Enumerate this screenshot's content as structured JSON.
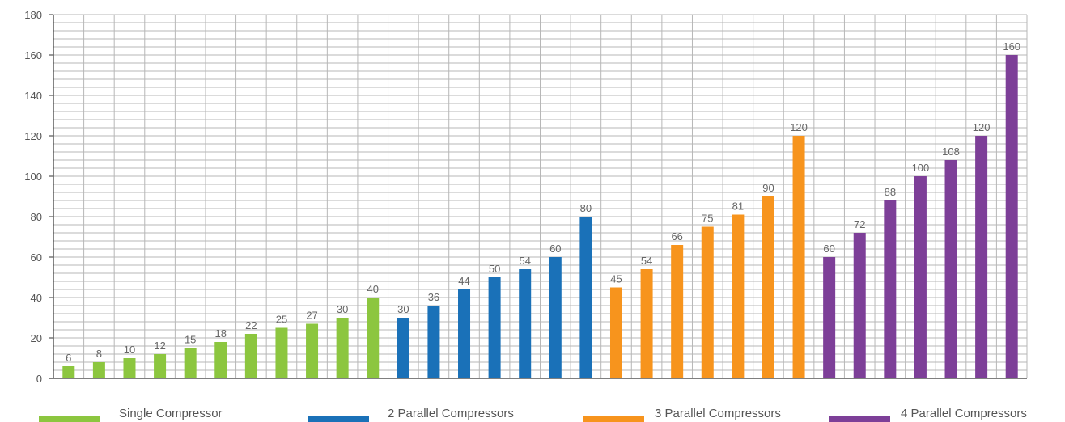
{
  "chart_data": {
    "type": "bar",
    "title": "",
    "xlabel": "",
    "ylabel": "",
    "ylim": [
      0,
      180
    ],
    "yticks": [
      0,
      20,
      40,
      60,
      80,
      100,
      120,
      140,
      160,
      180
    ],
    "minor_grid_step": 4,
    "grid": true,
    "legend_position": "bottom",
    "series": [
      {
        "name": "Single Compressor",
        "color": "#8cc63f",
        "values": [
          6,
          8,
          10,
          12,
          15,
          18,
          22,
          25,
          27,
          30,
          40
        ]
      },
      {
        "name": "2 Parallel Compressors",
        "color": "#1a71b8",
        "values": [
          30,
          36,
          44,
          50,
          54,
          60,
          80
        ]
      },
      {
        "name": "3 Parallel Compressors",
        "color": "#f7941d",
        "values": [
          45,
          54,
          66,
          75,
          81,
          90,
          120
        ]
      },
      {
        "name": "4 Parallel Compressors",
        "color": "#7d3f98",
        "values": [
          60,
          72,
          88,
          100,
          108,
          120,
          160
        ]
      }
    ]
  }
}
